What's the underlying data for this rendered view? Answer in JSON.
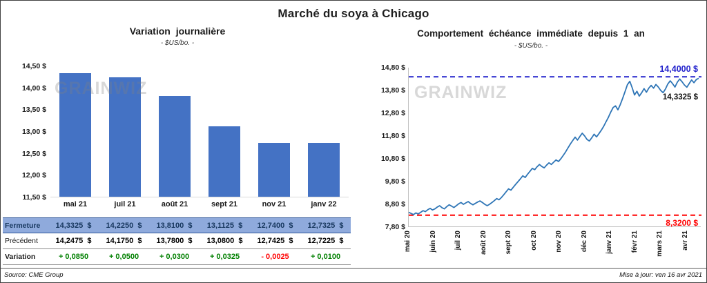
{
  "page": {
    "title": "Marché du soya à Chicago",
    "source": "Source: CME Group",
    "updated": "Mise à jour: ven 16 avr 2021",
    "watermark": "GRAINWIZ"
  },
  "colors": {
    "bar": "#4472C4",
    "line": "#2E75B6",
    "ref_high": "#2222CC",
    "ref_low": "#FF0000",
    "positive": "#008000",
    "negative": "#FF0000"
  },
  "chart_data": [
    {
      "id": "daily-variation",
      "type": "bar",
      "title": "Variation journalière",
      "subtitle": "- $US/bo. -",
      "categories": [
        "mai 21",
        "juil 21",
        "août 21",
        "sept 21",
        "nov 21",
        "janv 22"
      ],
      "values": [
        14.3325,
        14.225,
        13.81,
        13.1125,
        12.74,
        12.7325
      ],
      "ylim": [
        11.5,
        14.5
      ],
      "yticks": [
        "14,50 $",
        "14,00 $",
        "13,50 $",
        "13,00 $",
        "12,50 $",
        "12,00 $",
        "11,50 $"
      ],
      "grid": false,
      "legend": false
    },
    {
      "id": "front-month-one-year",
      "type": "line",
      "title": "Comportement échéance immédiate depuis 1 an",
      "subtitle": "- $US/bo. -",
      "ylim": [
        7.8,
        14.8
      ],
      "yticks": [
        "14,80 $",
        "13,80 $",
        "12,80 $",
        "11,80 $",
        "10,80 $",
        "9,80 $",
        "8,80 $",
        "7,80 $"
      ],
      "xticks": [
        "mai 20",
        "juin 20",
        "juil 20",
        "août 20",
        "sept 20",
        "oct 20",
        "nov 20",
        "déc 20",
        "janv 21",
        "févr 21",
        "mars 21",
        "avr 21"
      ],
      "x_total_months": 11.5,
      "values": [
        8.45,
        8.4,
        8.35,
        8.42,
        8.38,
        8.45,
        8.52,
        8.48,
        8.56,
        8.62,
        8.55,
        8.6,
        8.68,
        8.74,
        8.65,
        8.6,
        8.7,
        8.78,
        8.72,
        8.66,
        8.74,
        8.82,
        8.88,
        8.8,
        8.86,
        8.92,
        8.84,
        8.78,
        8.84,
        8.9,
        8.95,
        8.88,
        8.8,
        8.74,
        8.8,
        8.88,
        8.96,
        9.05,
        9.0,
        9.1,
        9.22,
        9.35,
        9.48,
        9.42,
        9.55,
        9.68,
        9.8,
        9.92,
        10.05,
        9.98,
        10.12,
        10.25,
        10.38,
        10.32,
        10.45,
        10.55,
        10.46,
        10.4,
        10.52,
        10.62,
        10.55,
        10.65,
        10.75,
        10.68,
        10.8,
        10.95,
        11.1,
        11.28,
        11.45,
        11.6,
        11.75,
        11.62,
        11.78,
        11.92,
        11.8,
        11.65,
        11.58,
        11.72,
        11.88,
        11.76,
        11.9,
        12.05,
        12.22,
        12.42,
        12.62,
        12.85,
        13.05,
        13.12,
        12.95,
        13.18,
        13.45,
        13.75,
        14.05,
        14.2,
        13.92,
        13.6,
        13.76,
        13.55,
        13.7,
        13.88,
        13.72,
        13.9,
        14.02,
        13.9,
        14.06,
        13.95,
        13.8,
        13.7,
        13.86,
        14.08,
        14.22,
        14.1,
        13.95,
        14.16,
        14.3,
        14.18,
        14.04,
        13.94,
        14.1,
        14.26,
        14.14,
        14.28,
        14.3325
      ],
      "last_value": 14.3325,
      "last_label": "14,3325 $",
      "ref_lines": [
        {
          "value": 14.4,
          "label": "14,4000 $",
          "color_key": "ref_high",
          "style": "dashed"
        },
        {
          "value": 8.32,
          "label": "8,3200 $",
          "color_key": "ref_low",
          "style": "dashed"
        }
      ],
      "grid": false,
      "legend": false
    }
  ],
  "table": {
    "rows": [
      {
        "style": "fermeture",
        "label": "Fermeture",
        "values": [
          "14,3325  $",
          "14,2250  $",
          "13,8100  $",
          "13,1125  $",
          "12,7400  $",
          "12,7325  $"
        ]
      },
      {
        "style": "precedent",
        "label": "Précédent",
        "values": [
          "14,2475  $",
          "14,1750  $",
          "13,7800  $",
          "13,0800  $",
          "12,7425  $",
          "12,7225  $"
        ]
      },
      {
        "style": "variation",
        "label": "Variation",
        "values": [
          "+ 0,0850",
          "+ 0,0500",
          "+ 0,0300",
          "+ 0,0325",
          "- 0,0025",
          "+ 0,0100"
        ]
      }
    ]
  }
}
